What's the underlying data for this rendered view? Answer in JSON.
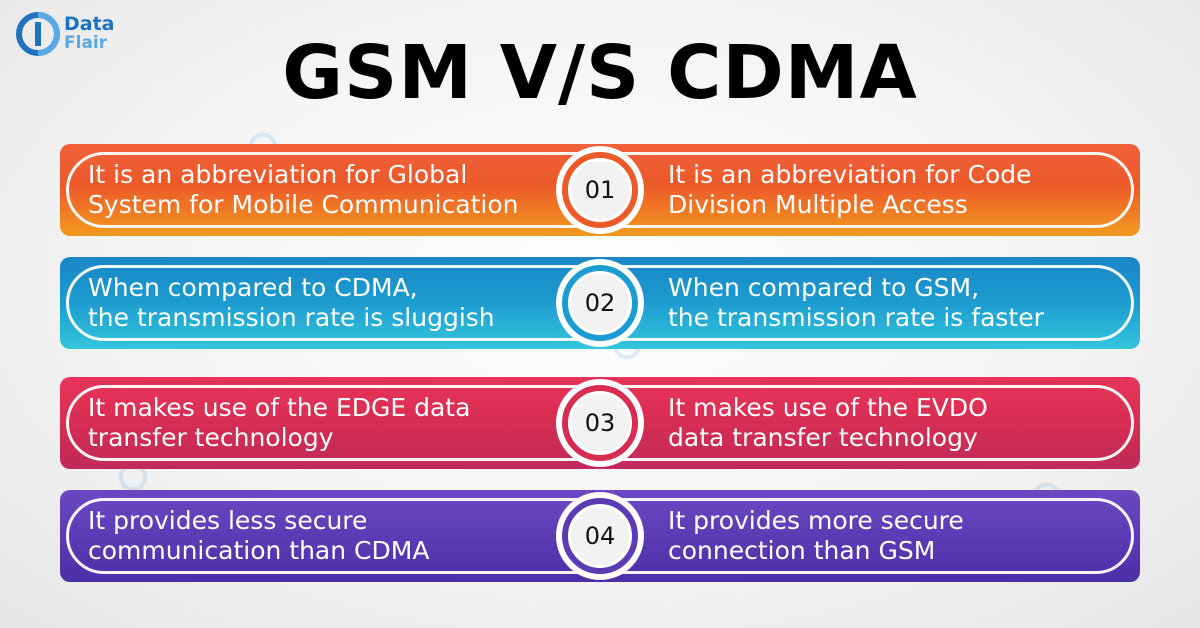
{
  "logo": {
    "line1": "Data",
    "line2": "Flair"
  },
  "title": "GSM V/S CDMA",
  "rows": [
    {
      "number": "01",
      "left": "It is an abbreviation for Global\nSystem for Mobile Communication",
      "right": "It is an abbreviation for Code\nDivision Multiple Access",
      "color": "#ec5a2a"
    },
    {
      "number": "02",
      "left": "When compared to CDMA,\nthe transmission rate is sluggish",
      "right": "When compared to GSM,\nthe transmission rate is faster",
      "color": "#1c9cd0"
    },
    {
      "number": "03",
      "left": "It makes use of the EDGE data\ntransfer technology",
      "right": "It makes use of the EVDO\ndata transfer technology",
      "color": "#d72d52"
    },
    {
      "number": "04",
      "left": "It provides less secure\ncommunication than CDMA",
      "right": "It provides more secure\nconnection than GSM",
      "color": "#5c3cb5"
    }
  ]
}
